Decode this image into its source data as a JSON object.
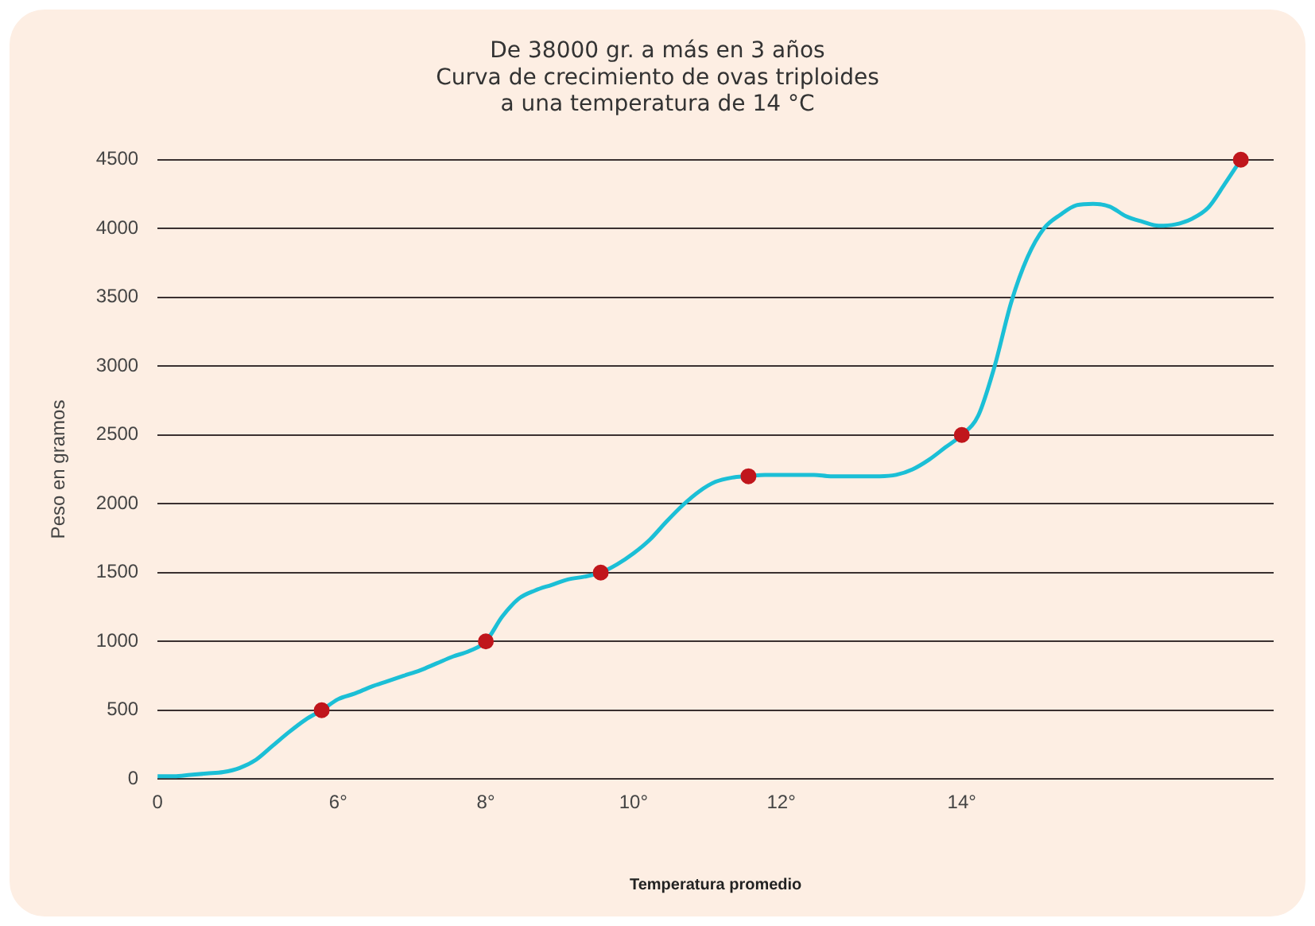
{
  "chart_data": {
    "type": "line",
    "title": [
      "De 38000 gr. a más en 3 años",
      "Curva de crecimiento de ovas triploides",
      "a una temperatura de 14 °C"
    ],
    "xlabel": "Temperatura promedio",
    "ylabel": "Peso en gramos",
    "categories": [
      "0",
      null,
      null,
      null,
      null,
      null,
      null,
      null,
      null,
      null,
      null,
      "6°",
      null,
      null,
      null,
      null,
      null,
      null,
      null,
      null,
      "8°",
      null,
      null,
      null,
      null,
      null,
      null,
      null,
      null,
      "10°",
      null,
      null,
      null,
      null,
      null,
      null,
      null,
      null,
      "12°",
      null,
      null,
      null,
      null,
      null,
      null,
      null,
      null,
      null,
      null,
      "14°",
      null,
      null,
      null,
      null,
      null,
      null,
      null,
      null,
      null,
      null,
      null,
      null,
      null,
      null,
      null,
      null,
      null,
      null,
      null
    ],
    "ylim": [
      0,
      4500
    ],
    "yticks": [
      0,
      500,
      1000,
      1500,
      2000,
      2500,
      3000,
      3500,
      4000,
      4500
    ],
    "grid": "y",
    "legend": false,
    "series": [
      {
        "color": "#1bbfd6",
        "marker": "none",
        "values": [
          20,
          20,
          30,
          40,
          50,
          80,
          140,
          240,
          340,
          430,
          500,
          580,
          620,
          670,
          710,
          750,
          790,
          840,
          890,
          930,
          1000,
          1180,
          1310,
          1370,
          1410,
          1450,
          1470,
          1500,
          1560,
          1640,
          1740,
          1870,
          1990,
          2090,
          2160,
          2190,
          2200,
          2210,
          2210,
          2210,
          2210,
          2200,
          2200,
          2200,
          2200,
          2210,
          2250,
          2320,
          2410,
          2500,
          2640,
          3000,
          3460,
          3790,
          4000,
          4100,
          4170,
          4180,
          4160,
          4090,
          4050,
          4020,
          4030,
          4070,
          4150,
          4320,
          4500,
          null,
          null
        ]
      },
      {
        "type": "scatter",
        "color": "#c0161c",
        "marker": "circle",
        "values": [
          null,
          null,
          null,
          null,
          null,
          null,
          null,
          null,
          null,
          null,
          500,
          null,
          null,
          null,
          null,
          null,
          null,
          null,
          null,
          null,
          1000,
          null,
          null,
          null,
          null,
          null,
          null,
          1500,
          null,
          null,
          null,
          null,
          null,
          null,
          null,
          null,
          2200,
          null,
          null,
          null,
          null,
          null,
          null,
          null,
          null,
          null,
          null,
          null,
          null,
          2500,
          null,
          null,
          null,
          null,
          null,
          null,
          null,
          null,
          null,
          null,
          null,
          null,
          null,
          null,
          null,
          null,
          4500,
          null,
          null
        ]
      }
    ]
  }
}
